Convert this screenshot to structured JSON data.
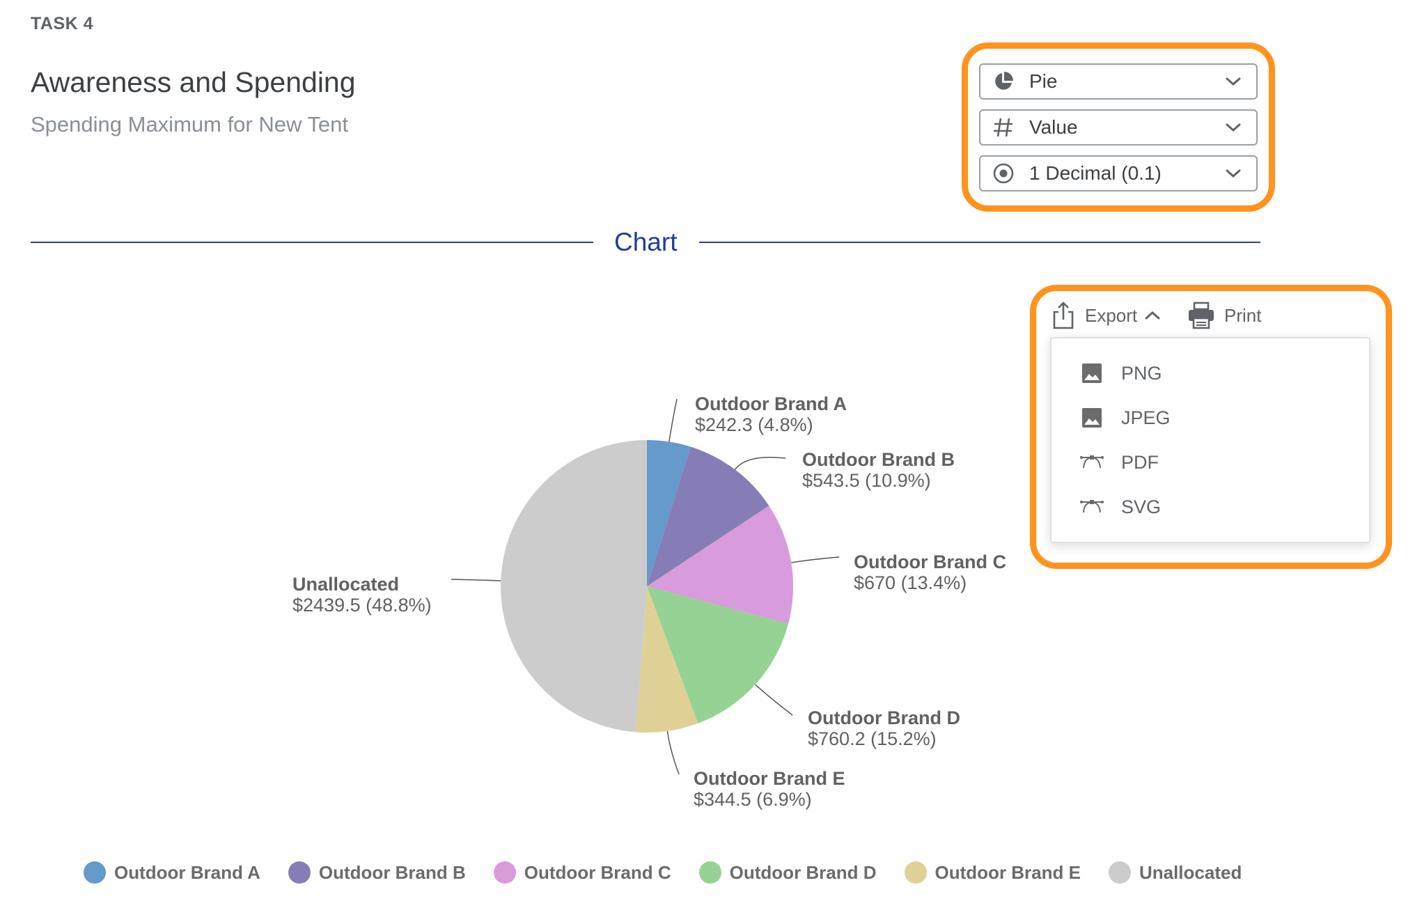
{
  "header": {
    "task_label": "TASK 4",
    "title": "Awareness and Spending",
    "subtitle": "Spending Maximum for New Tent"
  },
  "controls": {
    "chart_type": {
      "value": "Pie",
      "icon": "pie-chart-icon"
    },
    "value_mode": {
      "value": "Value",
      "icon": "hash-icon"
    },
    "precision": {
      "value": "1 Decimal (0.1)",
      "icon": "radio-target-icon"
    }
  },
  "section": {
    "title": "Chart"
  },
  "toolbar": {
    "export_label": "Export",
    "print_label": "Print",
    "export_menu": [
      {
        "label": "PNG",
        "icon": "image-icon"
      },
      {
        "label": "JPEG",
        "icon": "image-icon"
      },
      {
        "label": "PDF",
        "icon": "vector-icon"
      },
      {
        "label": "SVG",
        "icon": "vector-icon"
      }
    ]
  },
  "colors": {
    "highlight": "#ff931e",
    "divider": "#2b3d8f",
    "section_title": "#1f3d99"
  },
  "chart_data": {
    "type": "pie",
    "total_shown_as_percent": true,
    "slices": [
      {
        "name": "Outdoor Brand A",
        "value": 242.3,
        "percent": 4.8,
        "label": "$242.3 (4.8%)",
        "color": "#6699cc"
      },
      {
        "name": "Outdoor Brand B",
        "value": 543.5,
        "percent": 10.9,
        "label": "$543.5 (10.9%)",
        "color": "#867db6"
      },
      {
        "name": "Outdoor Brand C",
        "value": 670,
        "percent": 13.4,
        "label": "$670 (13.4%)",
        "color": "#d89bdc"
      },
      {
        "name": "Outdoor Brand D",
        "value": 760.2,
        "percent": 15.2,
        "label": "$760.2 (15.2%)",
        "color": "#96d293"
      },
      {
        "name": "Outdoor Brand E",
        "value": 344.5,
        "percent": 6.9,
        "label": "$344.5 (6.9%)",
        "color": "#dfd096"
      },
      {
        "name": "Unallocated",
        "value": 2439.5,
        "percent": 48.8,
        "label": "$2439.5 (48.8%)",
        "color": "#cccccc"
      }
    ],
    "legend_position": "bottom"
  }
}
